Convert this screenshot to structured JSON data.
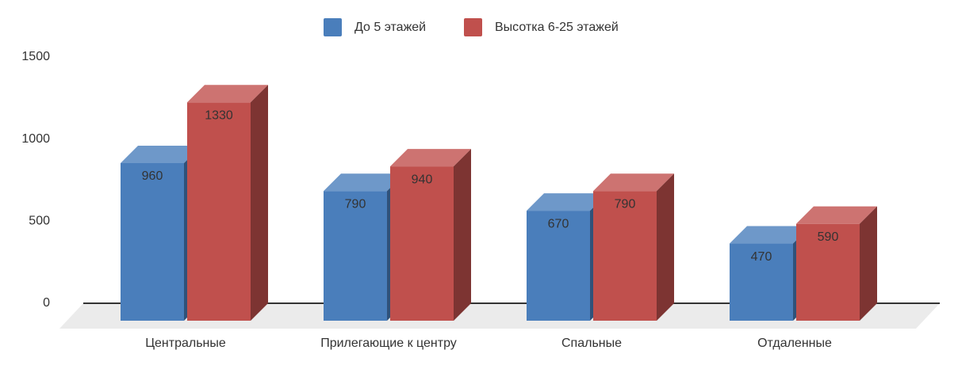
{
  "chart_data": {
    "type": "bar3d",
    "categories": [
      "Центральные",
      "Прилегающие к центру",
      "Спальные",
      "Отдаленные"
    ],
    "series": [
      {
        "name": "До 5 этажей",
        "color": "#4a7ebb",
        "values": [
          960,
          790,
          670,
          470
        ]
      },
      {
        "name": "Высотка 6-25 этажей",
        "color": "#c0504d",
        "values": [
          1330,
          940,
          790,
          590
        ]
      }
    ],
    "ylim": [
      0,
      1500
    ],
    "yticks": [
      0,
      500,
      1000,
      1500
    ],
    "legend": "top"
  }
}
